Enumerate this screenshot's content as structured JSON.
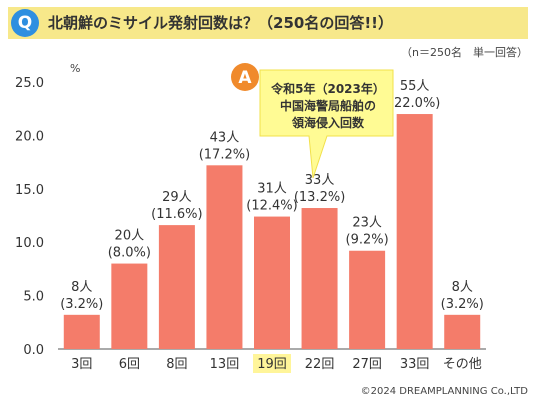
{
  "header": {
    "badge": "Q",
    "title": "北朝鮮のミサイル発射回数は？（250名の回答!!）"
  },
  "note": "（n＝250名　単一回答）",
  "callout": {
    "badge": "A",
    "line1": "令和5年（2023年）",
    "line2": "中国海警局船舶の",
    "line3": "領海侵入回数"
  },
  "copyright": "©2024 DREAMPLANNING Co.,LTD",
  "colors": {
    "bar": "#f47c6a",
    "highlight_label_bg": "#fff59a",
    "title_bg": "#f7e88a",
    "callout_bg": "#fffb94",
    "badge_q": "#2e8fe0",
    "badge_a": "#f08a2c"
  },
  "chart_data": {
    "type": "bar",
    "title": "",
    "xlabel": "",
    "ylabel": "%",
    "ylim": [
      0,
      25
    ],
    "yticks": [
      "0.0",
      "5.0",
      "10.0",
      "15.0",
      "20.0",
      "25.0"
    ],
    "grid": false,
    "categories": [
      "3回",
      "6回",
      "8回",
      "13回",
      "19回",
      "22回",
      "27回",
      "33回",
      "その他"
    ],
    "values": [
      3.2,
      8.0,
      11.6,
      17.2,
      12.4,
      13.2,
      9.2,
      22.0,
      3.2
    ],
    "counts": [
      "8人",
      "20人",
      "29人",
      "43人",
      "31人",
      "33人",
      "23人",
      "55人",
      "8人"
    ],
    "percent_labels": [
      "(3.2%)",
      "(8.0%)",
      "(11.6%)",
      "(17.2%)",
      "(12.4%)",
      "(13.2%)",
      "(9.2%)",
      "(22.0%)",
      "(3.2%)"
    ],
    "highlight_category": "19回"
  }
}
